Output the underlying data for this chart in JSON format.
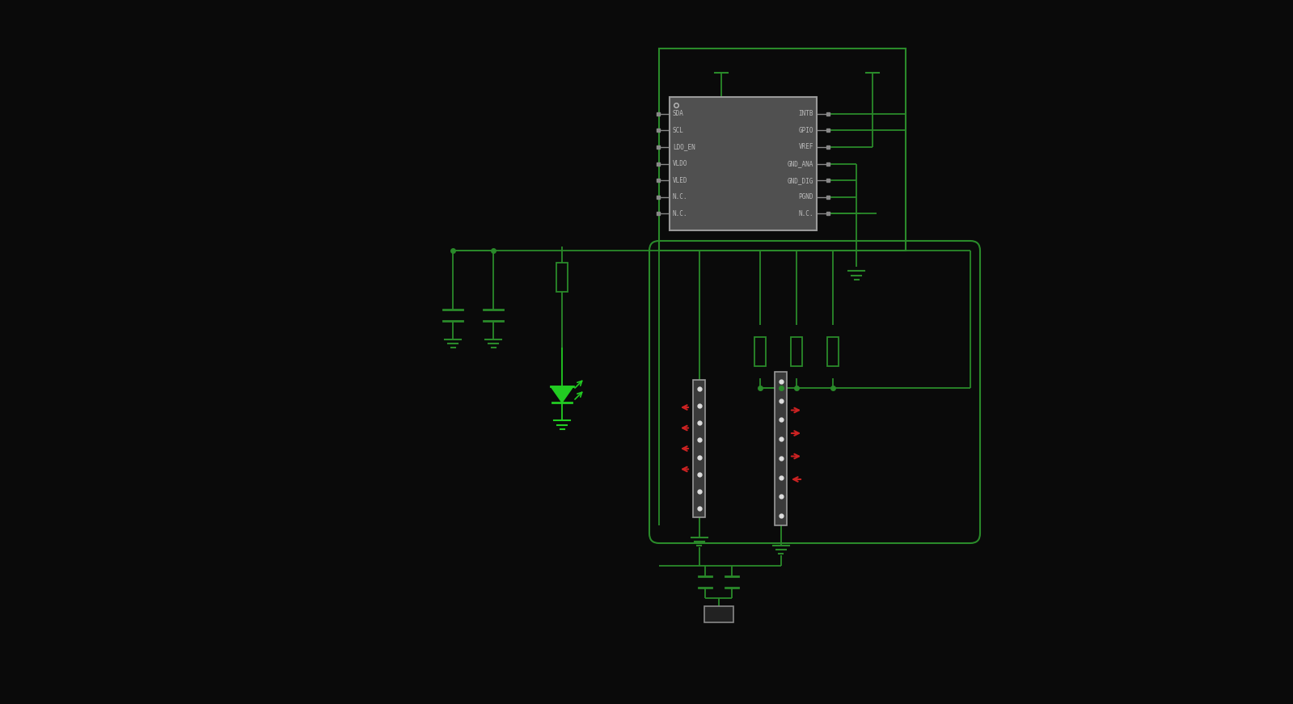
{
  "bg_color": "#0a0a0a",
  "lc": "#1a6a1a",
  "lc2": "#2a8a2a",
  "ic_fill": "#555555",
  "ic_edge": "#888888",
  "text_color": "#bbbbbb",
  "red_color": "#cc2222",
  "green_color": "#22cc22",
  "white_color": "#dddddd",
  "ic_pins_left": [
    "SDA",
    "SCL",
    "LDO_EN",
    "VLDO",
    "VLED",
    "N.C.",
    "N.C."
  ],
  "ic_pins_right": [
    "INTB",
    "GPIO",
    "VREF",
    "GND_ANA",
    "GND_DIG",
    "PGND",
    "N.C."
  ]
}
